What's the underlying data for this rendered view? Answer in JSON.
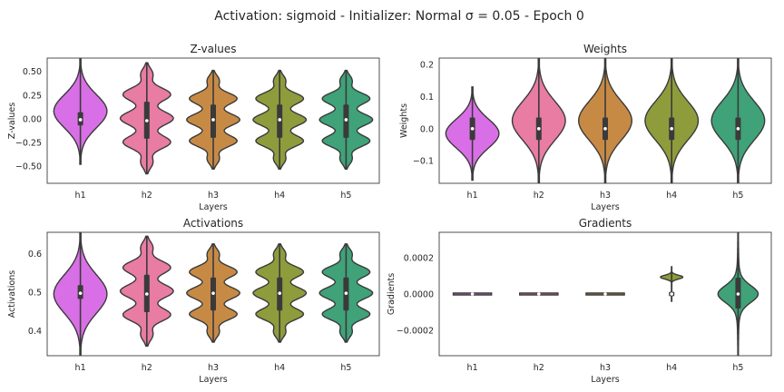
{
  "figure": {
    "title": "Activation: sigmoid - Initializer: Normal σ = 0.05 - Epoch 0"
  },
  "colors": {
    "h1": "#d96fe6",
    "h2": "#e87ca3",
    "h3": "#c78a45",
    "h4": "#8f9c3c",
    "h5": "#3fa278",
    "outline": "#3a3a3a"
  },
  "chart_data": [
    {
      "type": "violin",
      "title": "Z-values",
      "xlabel": "Layers",
      "ylabel": "Z-values",
      "categories": [
        "h1",
        "h2",
        "h3",
        "h4",
        "h5"
      ],
      "ylim": [
        -0.68,
        0.64
      ],
      "yticks": [
        -0.5,
        -0.25,
        0.0,
        0.25,
        0.5
      ],
      "ytick_labels": [
        "−0.50",
        "−0.25",
        "0.00",
        "0.25",
        "0.50"
      ],
      "series": [
        {
          "category": "h1",
          "min": -0.48,
          "q1": -0.07,
          "median": -0.01,
          "q3": 0.07,
          "max": 0.64
        },
        {
          "category": "h2",
          "min": -0.58,
          "q1": -0.21,
          "median": -0.02,
          "q3": 0.18,
          "max": 0.59
        },
        {
          "category": "h3",
          "min": -0.53,
          "q1": -0.2,
          "median": -0.01,
          "q3": 0.15,
          "max": 0.51
        },
        {
          "category": "h4",
          "min": -0.53,
          "q1": -0.2,
          "median": -0.01,
          "q3": 0.15,
          "max": 0.51
        },
        {
          "category": "h5",
          "min": -0.53,
          "q1": -0.2,
          "median": -0.01,
          "q3": 0.15,
          "max": 0.51
        }
      ]
    },
    {
      "type": "violin",
      "title": "Weights",
      "xlabel": "Layers",
      "ylabel": "Weights",
      "categories": [
        "h1",
        "h2",
        "h3",
        "h4",
        "h5"
      ],
      "ylim": [
        -0.17,
        0.22
      ],
      "yticks": [
        -0.1,
        0.0,
        0.1,
        0.2
      ],
      "ytick_labels": [
        "−0.1",
        "0.0",
        "0.1",
        "0.2"
      ],
      "series": [
        {
          "category": "h1",
          "min": -0.16,
          "q1": -0.035,
          "median": 0.0,
          "q3": 0.035,
          "max": 0.13
        },
        {
          "category": "h2",
          "min": -0.17,
          "q1": -0.035,
          "median": 0.0,
          "q3": 0.035,
          "max": 0.22
        },
        {
          "category": "h3",
          "min": -0.17,
          "q1": -0.035,
          "median": 0.0,
          "q3": 0.035,
          "max": 0.22
        },
        {
          "category": "h4",
          "min": -0.17,
          "q1": -0.035,
          "median": 0.0,
          "q3": 0.035,
          "max": 0.22
        },
        {
          "category": "h5",
          "min": -0.17,
          "q1": -0.035,
          "median": 0.0,
          "q3": 0.035,
          "max": 0.22
        }
      ]
    },
    {
      "type": "violin",
      "title": "Activations",
      "xlabel": "Layers",
      "ylabel": "Activations",
      "categories": [
        "h1",
        "h2",
        "h3",
        "h4",
        "h5"
      ],
      "ylim": [
        0.335,
        0.655
      ],
      "yticks": [
        0.4,
        0.5,
        0.6
      ],
      "ytick_labels": [
        "0.4",
        "0.5",
        "0.6"
      ],
      "series": [
        {
          "category": "h1",
          "min": 0.335,
          "q1": 0.482,
          "median": 0.497,
          "q3": 0.518,
          "max": 0.655
        },
        {
          "category": "h2",
          "min": 0.36,
          "q1": 0.448,
          "median": 0.495,
          "q3": 0.545,
          "max": 0.645
        },
        {
          "category": "h3",
          "min": 0.37,
          "q1": 0.452,
          "median": 0.497,
          "q3": 0.538,
          "max": 0.625
        },
        {
          "category": "h4",
          "min": 0.37,
          "q1": 0.452,
          "median": 0.497,
          "q3": 0.538,
          "max": 0.625
        },
        {
          "category": "h5",
          "min": 0.37,
          "q1": 0.452,
          "median": 0.497,
          "q3": 0.538,
          "max": 0.625
        }
      ]
    },
    {
      "type": "violin",
      "title": "Gradients",
      "xlabel": "Layers",
      "ylabel": "Gradients",
      "categories": [
        "h1",
        "h2",
        "h3",
        "h4",
        "h5"
      ],
      "ylim": [
        -0.00034,
        0.00034
      ],
      "yticks": [
        -0.0002,
        0.0,
        0.0002
      ],
      "ytick_labels": [
        "−0.0002",
        "0.0000",
        "0.0002"
      ],
      "series": [
        {
          "category": "h1",
          "min": -3e-06,
          "q1": -1e-06,
          "median": 0.0,
          "q3": 1e-06,
          "max": 3e-06
        },
        {
          "category": "h2",
          "min": -5e-06,
          "q1": -2e-06,
          "median": 0.0,
          "q3": 2e-06,
          "max": 5e-06
        },
        {
          "category": "h3",
          "min": -1.2e-05,
          "q1": -4e-06,
          "median": 0.0,
          "q3": 4e-06,
          "max": 1.2e-05
        },
        {
          "category": "h4",
          "min": -4e-05,
          "q1": -1.2e-05,
          "median": 0.0,
          "q3": 1.2e-05,
          "max": 0.00015
        },
        {
          "category": "h5",
          "min": -0.00034,
          "q1": -8e-05,
          "median": 0.0,
          "q3": 9e-05,
          "max": 0.00034
        }
      ]
    }
  ]
}
